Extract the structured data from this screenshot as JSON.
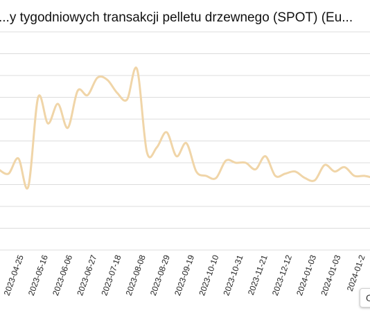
{
  "chart_data": {
    "type": "line",
    "title": "...y tygodniowych transakcji pelletu drzewnego (SPOT) (Eu...",
    "x_tick_labels": [
      "2023-04-25",
      "2023-05-16",
      "2023-06-06",
      "2023-06-27",
      "2023-07-18",
      "2023-08-08",
      "2023-08-29",
      "2023-09-19",
      "2023-10-10",
      "2023-10-31",
      "2023-11-21",
      "2023-12-12",
      "2024-01-03",
      "2024-01-03",
      "2024-01-2"
    ],
    "ylim": [
      0,
      10
    ],
    "grid": true,
    "series": [
      {
        "color": "#f0d5a8",
        "values": [
          3.7,
          3.5,
          4.2,
          2.9,
          7.0,
          5.8,
          6.7,
          5.6,
          7.3,
          7.1,
          7.9,
          7.8,
          7.2,
          6.9,
          8.3,
          4.5,
          4.7,
          5.4,
          4.3,
          4.9,
          3.6,
          3.4,
          3.3,
          4.1,
          4.0,
          4.0,
          3.7,
          4.3,
          3.4,
          3.5,
          3.6,
          3.3,
          3.2,
          3.9,
          3.6,
          3.8,
          3.4,
          3.4,
          3.3
        ]
      }
    ]
  },
  "overflow_badge_text": "O"
}
